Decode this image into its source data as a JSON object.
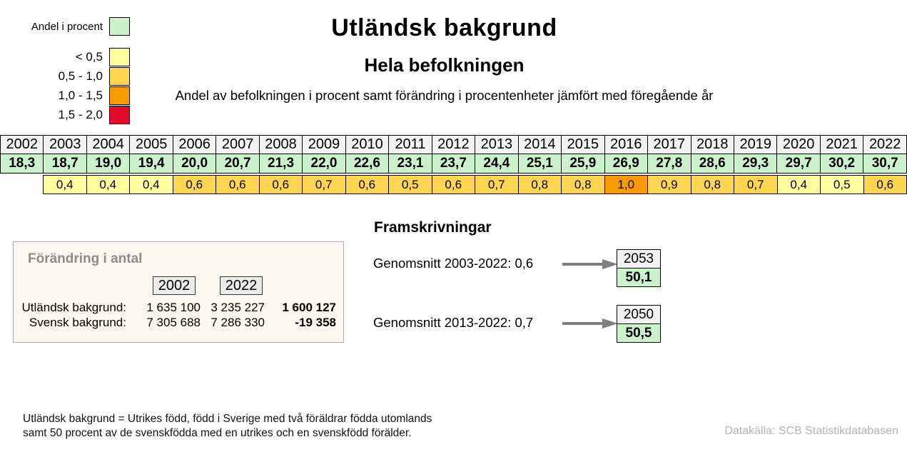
{
  "colors": {
    "green": "#CCF2CC",
    "pale_yellow": "#FFFFA0",
    "gold": "#FFD651",
    "orange": "#F79B00",
    "red": "#E30B2D",
    "header_gray": "#F2F2F2"
  },
  "legend": {
    "percent_label": "Andel i procent",
    "percent_color": "green",
    "bins": [
      {
        "label": "< 0,5",
        "color": "pale_yellow"
      },
      {
        "label": "0,5 - 1,0",
        "color": "gold"
      },
      {
        "label": "1,0 - 1,5",
        "color": "orange"
      },
      {
        "label": "1,5 - 2,0",
        "color": "red"
      }
    ]
  },
  "header": {
    "title": "Utländsk bakgrund",
    "subtitle": "Hela befolkningen",
    "description": "Andel av befolkningen i procent samt förändring i procentenheter jämfört med föregående år"
  },
  "table": {
    "years": [
      "2002",
      "2003",
      "2004",
      "2005",
      "2006",
      "2007",
      "2008",
      "2009",
      "2010",
      "2011",
      "2012",
      "2013",
      "2014",
      "2015",
      "2016",
      "2017",
      "2018",
      "2019",
      "2020",
      "2021",
      "2022"
    ],
    "percent": [
      "18,3",
      "18,7",
      "19,0",
      "19,4",
      "20,0",
      "20,7",
      "21,3",
      "22,0",
      "22,6",
      "23,1",
      "23,7",
      "24,4",
      "25,1",
      "25,9",
      "26,9",
      "27,8",
      "28,6",
      "29,3",
      "29,7",
      "30,2",
      "30,7"
    ],
    "changes": [
      null,
      {
        "value": "0,4",
        "color": "pale_yellow"
      },
      {
        "value": "0,4",
        "color": "pale_yellow"
      },
      {
        "value": "0,4",
        "color": "pale_yellow"
      },
      {
        "value": "0,6",
        "color": "gold"
      },
      {
        "value": "0,6",
        "color": "gold"
      },
      {
        "value": "0,6",
        "color": "gold"
      },
      {
        "value": "0,7",
        "color": "gold"
      },
      {
        "value": "0,6",
        "color": "gold"
      },
      {
        "value": "0,5",
        "color": "gold"
      },
      {
        "value": "0,6",
        "color": "gold"
      },
      {
        "value": "0,7",
        "color": "gold"
      },
      {
        "value": "0,8",
        "color": "gold"
      },
      {
        "value": "0,8",
        "color": "gold"
      },
      {
        "value": "1,0",
        "color": "orange"
      },
      {
        "value": "0,9",
        "color": "gold"
      },
      {
        "value": "0,8",
        "color": "gold"
      },
      {
        "value": "0,7",
        "color": "gold"
      },
      {
        "value": "0,4",
        "color": "pale_yellow"
      },
      {
        "value": "0,5",
        "color": "pale_yellow"
      },
      {
        "value": "0,6",
        "color": "gold"
      }
    ]
  },
  "change_box": {
    "title": "Förändring i antal",
    "col_headers": [
      "2002",
      "2022"
    ],
    "rows": [
      {
        "label": "Utländsk bakgrund:",
        "v2002": "1 635 100",
        "v2022": "3 235 227",
        "diff": "1 600 127"
      },
      {
        "label": "Svensk bakgrund:",
        "v2002": "7 305 688",
        "v2022": "7 286 330",
        "diff": "-19 358"
      }
    ]
  },
  "projections": {
    "title": "Framskrivningar",
    "items": [
      {
        "label": "Genomsnitt 2003-2022: 0,6",
        "year": "2053",
        "value": "50,1"
      },
      {
        "label": "Genomsnitt 2013-2022: 0,7",
        "year": "2050",
        "value": "50,5"
      }
    ]
  },
  "footnote": {
    "line1": "Utländsk bakgrund = Utrikes född, född i Sverige med två föräldrar födda utomlands",
    "line2": "samt 50 procent av de svenskfödda med en utrikes och en svenskfödd förälder."
  },
  "source": "Datakälla: SCB Statistikdatabasen",
  "chart_data": {
    "type": "table",
    "title": "Utländsk bakgrund",
    "subtitle": "Hela befolkningen",
    "x": [
      2002,
      2003,
      2004,
      2005,
      2006,
      2007,
      2008,
      2009,
      2010,
      2011,
      2012,
      2013,
      2014,
      2015,
      2016,
      2017,
      2018,
      2019,
      2020,
      2021,
      2022
    ],
    "series": [
      {
        "name": "Andel i procent",
        "values": [
          18.3,
          18.7,
          19.0,
          19.4,
          20.0,
          20.7,
          21.3,
          22.0,
          22.6,
          23.1,
          23.7,
          24.4,
          25.1,
          25.9,
          26.9,
          27.8,
          28.6,
          29.3,
          29.7,
          30.2,
          30.7
        ]
      },
      {
        "name": "Förändring i procentenheter",
        "values": [
          null,
          0.4,
          0.4,
          0.4,
          0.6,
          0.6,
          0.6,
          0.7,
          0.6,
          0.5,
          0.6,
          0.7,
          0.8,
          0.8,
          1.0,
          0.9,
          0.8,
          0.7,
          0.4,
          0.5,
          0.6
        ]
      }
    ],
    "legend_bins": [
      "< 0,5",
      "0,5 - 1,0",
      "1,0 - 1,5",
      "1,5 - 2,0"
    ],
    "projections": [
      {
        "average_label": "Genomsnitt 2003-2022",
        "average": 0.6,
        "year": 2053,
        "share": 50.1
      },
      {
        "average_label": "Genomsnitt 2013-2022",
        "average": 0.7,
        "year": 2050,
        "share": 50.5
      }
    ],
    "change_in_numbers": {
      "utlandsk_bakgrund": {
        "y2002": 1635100,
        "y2022": 3235227,
        "diff": 1600127
      },
      "svensk_bakgrund": {
        "y2002": 7305688,
        "y2022": 7286330,
        "diff": -19358
      }
    }
  }
}
